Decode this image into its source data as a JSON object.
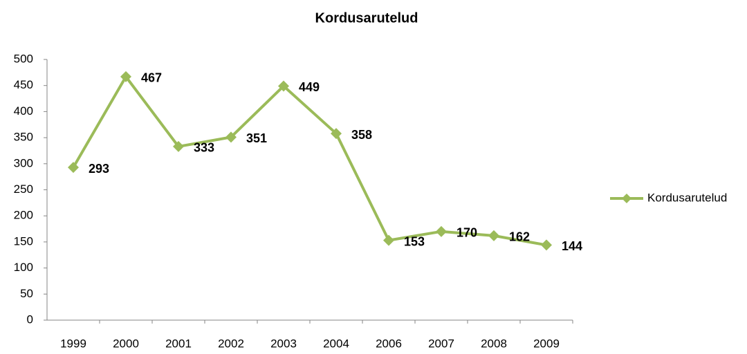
{
  "chart_data": {
    "type": "line",
    "title": "Kordusarutelud",
    "categories": [
      "1999",
      "2000",
      "2001",
      "2002",
      "2003",
      "2004",
      "2006",
      "2007",
      "2008",
      "2009"
    ],
    "series": [
      {
        "name": "Kordusarutelud",
        "color": "#9bbb59",
        "values": [
          293,
          467,
          333,
          351,
          449,
          358,
          153,
          170,
          162,
          144
        ]
      }
    ],
    "ylim": [
      0,
      500
    ],
    "yticks": [
      0,
      50,
      100,
      150,
      200,
      250,
      300,
      350,
      400,
      450,
      500
    ],
    "legend": "right",
    "grid": false
  }
}
